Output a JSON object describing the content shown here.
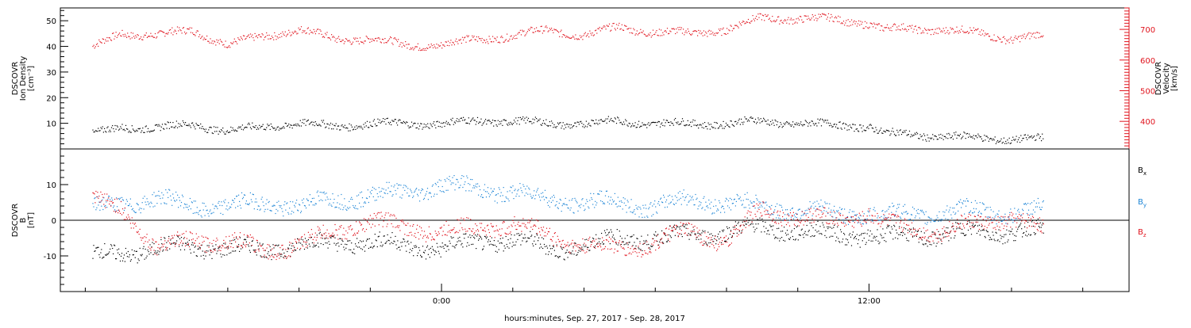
{
  "chart_data": [
    {
      "type": "scatter",
      "panel": "plasma",
      "ylabel_left": [
        "DSCOVR",
        "Ion Density",
        "[cm⁻³]"
      ],
      "ylabel_right": [
        "DSCOVR",
        "Velocity",
        "[km/s]"
      ],
      "ylim_left": [
        0,
        55
      ],
      "ylim_right": [
        310,
        770
      ],
      "yticks_left": [
        10,
        20,
        30,
        40,
        50
      ],
      "yticks_right": [
        400,
        500,
        600,
        700
      ],
      "ytick_labels_right": [
        "400",
        "500",
        "600",
        "700"
      ],
      "right_axis_color": "#e0141e",
      "series": [
        {
          "axis": "right",
          "color": "#e0141e",
          "t": [
            -9.8,
            -9,
            -8,
            -7,
            -6,
            -5,
            -4,
            -3,
            -2,
            -1,
            0,
            1,
            2,
            3,
            4,
            5,
            6,
            7,
            8,
            9,
            10,
            11,
            12,
            12.4,
            13,
            14,
            15,
            16,
            16.9
          ],
          "v": [
            640,
            690,
            680,
            700,
            650,
            680,
            700,
            670,
            670,
            650,
            650,
            670,
            680,
            700,
            680,
            710,
            690,
            690,
            700,
            740,
            735,
            735,
            720,
            700,
            705,
            700,
            690,
            670,
            680
          ]
        },
        {
          "axis": "left",
          "color": "#000000",
          "t": [
            -9.8,
            -9,
            -8,
            -7,
            -6,
            -5,
            -4,
            -3,
            -2,
            -1,
            0,
            1,
            2,
            3,
            4,
            5,
            6,
            7,
            8,
            9,
            10,
            11,
            12,
            12.4,
            13,
            14,
            15,
            16,
            16.9
          ],
          "v": [
            5.5,
            9,
            8,
            10,
            7,
            9,
            10,
            9,
            10,
            10,
            10,
            11,
            11,
            10,
            10,
            11,
            10,
            10,
            10,
            11,
            10,
            9.5,
            9,
            6,
            6,
            5,
            4.5,
            4,
            4
          ]
        }
      ]
    },
    {
      "type": "scatter",
      "panel": "magnetic-field",
      "ylabel_left": [
        "DSCOVR",
        "B",
        "[nT]"
      ],
      "ylim": [
        -20,
        20
      ],
      "yticks": [
        -10,
        0,
        10
      ],
      "zero_line": true,
      "xlabel": "hours:minutes, Sep. 27, 2017 - Sep. 28, 2017",
      "xlim": [
        -10.7,
        19.3
      ],
      "xticks": [
        0,
        12
      ],
      "xtick_labels": [
        "0:00",
        "12:00"
      ],
      "x_minor_step": 2,
      "series": [
        {
          "name": "B",
          "sub": "x",
          "color": "#000000",
          "t": [
            -9.8,
            -9,
            -8,
            -7,
            -6,
            -5,
            -4,
            -3,
            -2,
            -1,
            0,
            1,
            2,
            3,
            4,
            5,
            6,
            7,
            8,
            9,
            10,
            11,
            12,
            12.4,
            13,
            14,
            15,
            16,
            16.9
          ],
          "v": [
            -10,
            -9,
            -8,
            -7,
            -8,
            -8,
            -7,
            -6,
            -6,
            -7,
            -8,
            -6,
            -5,
            -8,
            -7,
            -5,
            -5,
            -4,
            -3,
            -2,
            -3,
            -4,
            -4,
            -5,
            -4,
            -4,
            -3,
            -3,
            -3
          ]
        },
        {
          "name": "B",
          "sub": "y",
          "color": "#1f86d6",
          "t": [
            -9.8,
            -9,
            -8,
            -7,
            -6,
            -5,
            -4,
            -3,
            -2,
            -1,
            0,
            1,
            2,
            3,
            4,
            5,
            6,
            7,
            8,
            9,
            10,
            11,
            12,
            12.4,
            13,
            14,
            15,
            16,
            16.9
          ],
          "v": [
            3,
            5,
            6,
            4,
            4,
            5,
            4,
            6,
            7,
            8,
            10,
            9,
            8,
            6,
            5,
            5,
            4,
            6,
            5,
            4,
            3,
            2,
            2,
            1,
            2,
            2,
            3,
            2,
            3
          ]
        },
        {
          "name": "B",
          "sub": "z",
          "color": "#e0141e",
          "t": [
            -9.8,
            -9,
            -8,
            -7,
            -6,
            -5,
            -4,
            -3,
            -2,
            -1,
            0,
            1,
            2,
            3,
            4,
            5,
            6,
            7,
            8,
            9,
            10,
            11,
            12,
            12.4,
            13,
            14,
            15,
            16,
            16.9
          ],
          "v": [
            5,
            4,
            -8,
            -5,
            -6,
            -8,
            -7,
            -3,
            0,
            -2,
            -3,
            -2,
            -1,
            -4,
            -7,
            -8,
            -6,
            -3,
            -6,
            3,
            1,
            0,
            2,
            -1,
            -2,
            -3,
            -1,
            1,
            -3
          ]
        }
      ]
    }
  ]
}
